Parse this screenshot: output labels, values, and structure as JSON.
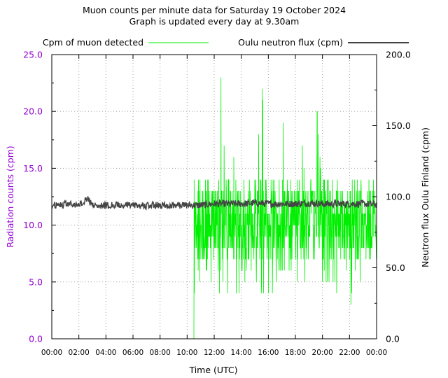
{
  "chart_data": {
    "type": "line",
    "title_line1": "Muon counts per minute data for Saturday 19 October 2024",
    "title_line2": "Graph is updated every day at 9.30am",
    "xlabel": "Time (UTC)",
    "ylabel_left": "Radiation counts (cpm)",
    "ylabel_right": "Neutron flux Oulu Finland (cpm)",
    "x_ticks": [
      "00:00",
      "02:00",
      "04:00",
      "06:00",
      "08:00",
      "10:00",
      "12:00",
      "14:00",
      "16:00",
      "18:00",
      "20:00",
      "22:00",
      "00:00"
    ],
    "x_range_hours": [
      0,
      24
    ],
    "y_left_ticks": [
      "0.0",
      "5.0",
      "10.0",
      "15.0",
      "20.0",
      "25.0"
    ],
    "y_left_range": [
      0,
      25
    ],
    "y_right_ticks": [
      "0.0",
      "50.0",
      "100.0",
      "150.0",
      "200.0"
    ],
    "y_right_range": [
      0,
      200
    ],
    "grid": true,
    "legend_position": "top",
    "series": [
      {
        "name": "Cpm of muon detected",
        "axis": "left",
        "color": "#00ee00",
        "start_hour": 10.5,
        "summary": {
          "min": 0,
          "max": 23,
          "typical": 10
        },
        "sample_points": [
          [
            10.5,
            0
          ],
          [
            10.55,
            14
          ],
          [
            10.6,
            4
          ],
          [
            10.65,
            12
          ],
          [
            11,
            10
          ],
          [
            11.5,
            9
          ],
          [
            12,
            15
          ],
          [
            12.5,
            23
          ],
          [
            13,
            11
          ],
          [
            13.5,
            17
          ],
          [
            14,
            8
          ],
          [
            14.5,
            18
          ],
          [
            15,
            12
          ],
          [
            15.5,
            23
          ],
          [
            16,
            10
          ],
          [
            16.5,
            9
          ],
          [
            17,
            21
          ],
          [
            17.5,
            12
          ],
          [
            18,
            13
          ],
          [
            18.5,
            17
          ],
          [
            19,
            10
          ],
          [
            19.5,
            22
          ],
          [
            20,
            12
          ],
          [
            20.5,
            15
          ],
          [
            21,
            9
          ],
          [
            21.5,
            11
          ],
          [
            22,
            1
          ],
          [
            22.5,
            12
          ],
          [
            23,
            14
          ],
          [
            23.5,
            10
          ],
          [
            24,
            11
          ]
        ]
      },
      {
        "name": "Oulu neutron flux (cpm)",
        "axis": "right",
        "color": "#444444",
        "summary": {
          "typical": 94,
          "min": 90,
          "max": 101
        },
        "sample_points": [
          [
            0,
            94
          ],
          [
            1,
            94.5
          ],
          [
            2,
            94
          ],
          [
            2.6,
            99
          ],
          [
            3,
            94
          ],
          [
            4,
            94
          ],
          [
            5,
            94
          ],
          [
            6,
            94
          ],
          [
            7,
            93.5
          ],
          [
            8,
            94
          ],
          [
            9,
            94
          ],
          [
            10,
            94
          ],
          [
            10.5,
            94
          ],
          [
            11,
            94
          ],
          [
            12,
            95
          ],
          [
            13,
            95
          ],
          [
            14,
            95
          ],
          [
            15,
            95.5
          ],
          [
            16,
            95
          ],
          [
            17,
            95
          ],
          [
            18,
            95
          ],
          [
            19,
            95.5
          ],
          [
            20,
            95
          ],
          [
            21,
            95
          ],
          [
            22,
            95
          ],
          [
            23,
            95
          ],
          [
            24,
            94.5
          ]
        ]
      }
    ]
  }
}
